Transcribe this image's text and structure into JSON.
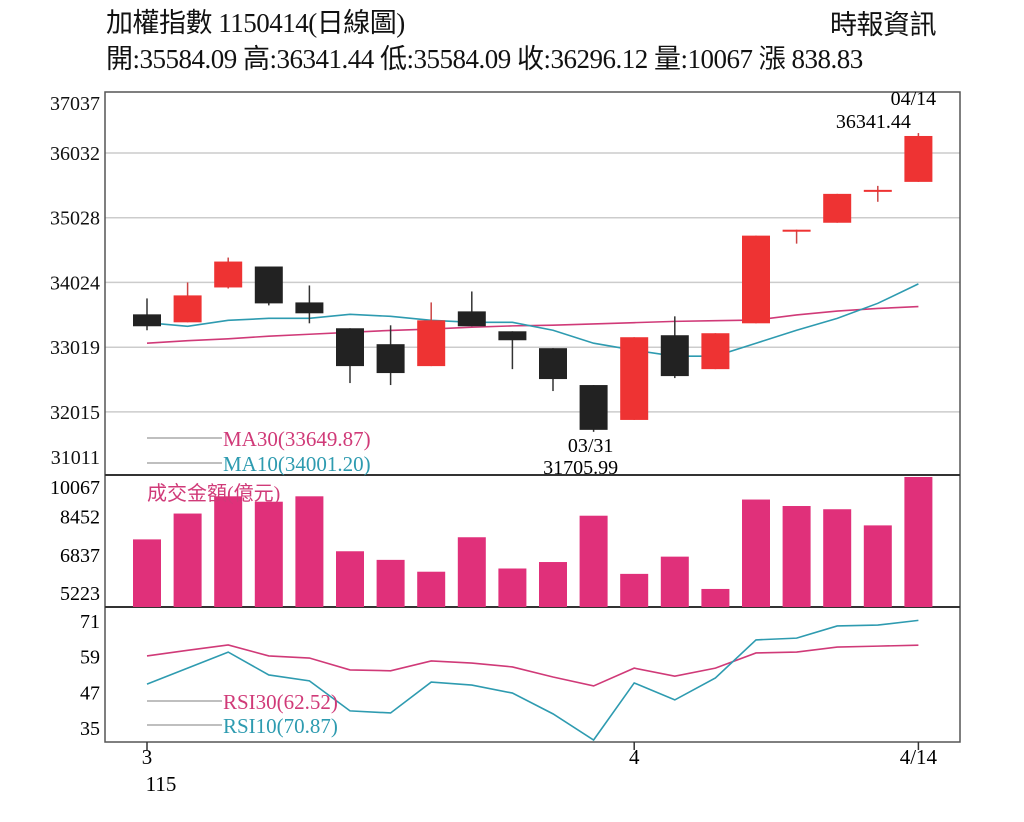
{
  "header": {
    "title": "加權指數 1150414(日線圖)",
    "source": "時報資訊",
    "quote": "開:35584.09 高:36341.44 低:35584.09 收:36296.12 量:10067 漲 838.83"
  },
  "colors": {
    "up": "#ee3333",
    "down": "#222222",
    "ma30": "#d03a78",
    "ma10": "#2e9bb0",
    "volume": "#e0307a",
    "grid": "#cccccc"
  },
  "chart_data": {
    "type": "candlestick",
    "title": "加權指數 1150414(日線圖)",
    "x_ticks": [
      {
        "index": 0,
        "label": "3"
      },
      {
        "index": 12,
        "label": "4"
      },
      {
        "index": 19,
        "label": "4/14"
      }
    ],
    "x_sub_label": "115",
    "price": {
      "y_ticks": [
        "37037",
        "36032",
        "35028",
        "34024",
        "33019",
        "32015",
        "31011"
      ],
      "ylim": [
        31011,
        37037
      ],
      "candles": [
        {
          "o": 33529,
          "h": 33776,
          "l": 33282,
          "c": 33344
        },
        {
          "o": 33405,
          "h": 34024,
          "l": 33405,
          "c": 33823
        },
        {
          "o": 33946,
          "h": 34410,
          "l": 33930,
          "c": 34348
        },
        {
          "o": 34271,
          "h": 34271,
          "l": 33668,
          "c": 33699
        },
        {
          "o": 33714,
          "h": 33977,
          "l": 33390,
          "c": 33545
        },
        {
          "o": 33313,
          "h": 33313,
          "l": 32463,
          "c": 32726
        },
        {
          "o": 33066,
          "h": 33359,
          "l": 32432,
          "c": 32618
        },
        {
          "o": 32726,
          "h": 33714,
          "l": 32726,
          "c": 33436
        },
        {
          "o": 33575,
          "h": 33884,
          "l": 33344,
          "c": 33344
        },
        {
          "o": 33266,
          "h": 33266,
          "l": 32679,
          "c": 33127
        },
        {
          "o": 33004,
          "h": 33004,
          "l": 32339,
          "c": 32525
        },
        {
          "o": 32432,
          "h": 32432,
          "l": 31705.99,
          "c": 31737
        },
        {
          "o": 31891,
          "h": 33174,
          "l": 31891,
          "c": 33174
        },
        {
          "o": 33205,
          "h": 33498,
          "l": 32540,
          "c": 32571
        },
        {
          "o": 32679,
          "h": 33236,
          "l": 32679,
          "c": 33236
        },
        {
          "o": 33390,
          "h": 34750,
          "l": 33390,
          "c": 34750
        },
        {
          "o": 34811,
          "h": 34842,
          "l": 34626,
          "c": 34842
        },
        {
          "o": 34950,
          "h": 35398,
          "l": 34950,
          "c": 35398
        },
        {
          "o": 35444,
          "h": 35522,
          "l": 35275,
          "c": 35460
        },
        {
          "o": 35584.09,
          "h": 36341.44,
          "l": 35584.09,
          "c": 36296.12
        }
      ],
      "ma30": [
        33081,
        33120,
        33150,
        33190,
        33220,
        33250,
        33280,
        33300,
        33330,
        33350,
        33360,
        33380,
        33400,
        33420,
        33430,
        33440,
        33520,
        33580,
        33620,
        33649.87
      ],
      "ma10": [
        33400,
        33344,
        33436,
        33467,
        33467,
        33529,
        33498,
        33436,
        33405,
        33405,
        33282,
        33081,
        32973,
        32880,
        32880,
        33081,
        33282,
        33467,
        33700,
        34001.2
      ],
      "legend": [
        {
          "key": "ma30",
          "label": "MA30(33649.87)"
        },
        {
          "key": "ma10",
          "label": "MA10(34001.20)"
        }
      ],
      "annotations": [
        {
          "index": 19,
          "date": "04/14",
          "value": "36341.44",
          "position": "above"
        },
        {
          "index": 11,
          "date": "03/31",
          "value": "31705.99",
          "position": "below"
        }
      ]
    },
    "volume": {
      "title": "成交金額(億元)",
      "y_ticks": [
        "10067",
        "8452",
        "6837",
        "5223"
      ],
      "ylim": [
        4600,
        10067
      ],
      "values": [
        7443,
        8530,
        9255,
        9028,
        9255,
        6944,
        6582,
        6084,
        7533,
        6219,
        6491,
        8439,
        5993,
        6718,
        5359,
        9119,
        8847,
        8711,
        8032,
        10067
      ]
    },
    "rsi": {
      "y_ticks": [
        "71",
        "59",
        "47",
        "35"
      ],
      "ylim": [
        30.5,
        71
      ],
      "rsi30": [
        58.9,
        60.8,
        62.6,
        58.9,
        58.2,
        54.2,
        53.9,
        57.2,
        56.5,
        55.2,
        51.8,
        48.8,
        54.8,
        52.1,
        54.8,
        59.9,
        60.2,
        61.9,
        62.2,
        62.52
      ],
      "rsi10": [
        49.4,
        54.8,
        60.2,
        52.5,
        50.5,
        40.4,
        39.7,
        50.1,
        49.1,
        46.4,
        39.4,
        30.6,
        49.8,
        44.1,
        51.5,
        64.3,
        64.9,
        69.0,
        69.3,
        70.87
      ],
      "legend": [
        {
          "key": "rsi30",
          "label": "RSI30(62.52)"
        },
        {
          "key": "rsi10",
          "label": "RSI10(70.87)"
        }
      ]
    }
  }
}
